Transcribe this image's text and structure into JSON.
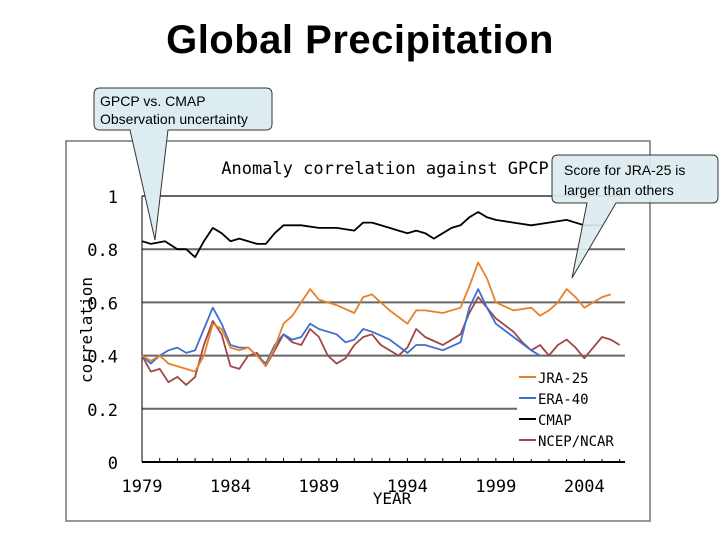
{
  "slide": {
    "title": "Global Precipitation",
    "callouts": [
      {
        "lines": [
          "GPCP vs. CMAP",
          "Observation uncertainty"
        ]
      },
      {
        "lines": [
          "Score for JRA-25 is",
          "larger than others"
        ]
      }
    ],
    "callout_fill": "#dcecf0"
  },
  "chart_data": {
    "type": "line",
    "title": "Anomaly correlation against GPCP",
    "xlabel": "YEAR",
    "ylabel": "correlation",
    "xlim": [
      1979,
      2006.3
    ],
    "ylim": [
      0,
      1
    ],
    "xticks": [
      "1979",
      "1984",
      "1989",
      "1994",
      "1999",
      "2004"
    ],
    "yticks": [
      "0",
      "0.2",
      "0.4",
      "0.6",
      "0.8",
      "1"
    ],
    "grid": true,
    "legend_position": "bottom-right",
    "series": [
      {
        "name": "JRA-25",
        "color": "#e8822a",
        "x": [
          1979,
          1979.5,
          1980,
          1980.5,
          1981,
          1981.5,
          1982,
          1982.5,
          1983,
          1983.5,
          1984,
          1984.5,
          1985,
          1985.5,
          1986,
          1986.5,
          1987,
          1987.5,
          1988,
          1988.5,
          1989,
          1990,
          1991,
          1991.5,
          1992,
          1992.5,
          1993,
          1994,
          1994.5,
          1995,
          1996,
          1997,
          1997.5,
          1998,
          1998.5,
          1999,
          2000,
          2001,
          2001.5,
          2002,
          2002.5,
          2003,
          2003.5,
          2004,
          2004.5,
          2005,
          2005.5
        ],
        "y": [
          0.4,
          0.38,
          0.4,
          0.37,
          0.36,
          0.35,
          0.34,
          0.4,
          0.52,
          0.5,
          0.43,
          0.42,
          0.43,
          0.4,
          0.36,
          0.43,
          0.52,
          0.55,
          0.6,
          0.65,
          0.61,
          0.59,
          0.56,
          0.62,
          0.63,
          0.6,
          0.57,
          0.52,
          0.57,
          0.57,
          0.56,
          0.58,
          0.66,
          0.75,
          0.69,
          0.6,
          0.57,
          0.58,
          0.55,
          0.57,
          0.6,
          0.65,
          0.62,
          0.58,
          0.6,
          0.62,
          0.63
        ]
      },
      {
        "name": "ERA-40",
        "color": "#3f6fd0",
        "x": [
          1979,
          1979.5,
          1980,
          1980.5,
          1981,
          1981.5,
          1982,
          1982.5,
          1983,
          1983.5,
          1984,
          1984.5,
          1985,
          1985.5,
          1986,
          1986.5,
          1987,
          1987.5,
          1988,
          1988.5,
          1989,
          1990,
          1990.5,
          1991,
          1991.5,
          1992,
          1993,
          1994,
          1994.5,
          1995,
          1996,
          1997,
          1997.5,
          1998,
          1998.5,
          1999,
          2000,
          2001,
          2001.5
        ],
        "y": [
          0.4,
          0.37,
          0.4,
          0.42,
          0.43,
          0.41,
          0.42,
          0.5,
          0.58,
          0.52,
          0.44,
          0.43,
          0.43,
          0.4,
          0.37,
          0.44,
          0.48,
          0.46,
          0.47,
          0.52,
          0.5,
          0.48,
          0.45,
          0.46,
          0.5,
          0.49,
          0.46,
          0.41,
          0.44,
          0.44,
          0.42,
          0.45,
          0.58,
          0.65,
          0.58,
          0.52,
          0.47,
          0.42,
          0.4
        ]
      },
      {
        "name": "CMAP",
        "color": "#000000",
        "x": [
          1979,
          1979.5,
          1980.3,
          1981,
          1981.5,
          1982,
          1982.5,
          1983,
          1983.5,
          1984,
          1984.5,
          1985,
          1985.5,
          1986,
          1986.5,
          1987,
          1988,
          1989,
          1990,
          1991,
          1991.5,
          1992,
          1993,
          1993.5,
          1994,
          1994.5,
          1995,
          1995.5,
          1996,
          1996.5,
          1997,
          1997.5,
          1998,
          1998.5,
          1999,
          2000,
          2001,
          2002,
          2003,
          2004,
          2005
        ],
        "y": [
          0.83,
          0.82,
          0.83,
          0.8,
          0.8,
          0.77,
          0.83,
          0.88,
          0.86,
          0.83,
          0.84,
          0.83,
          0.82,
          0.82,
          0.86,
          0.89,
          0.89,
          0.88,
          0.88,
          0.87,
          0.9,
          0.9,
          0.88,
          0.87,
          0.86,
          0.87,
          0.86,
          0.84,
          0.86,
          0.88,
          0.89,
          0.92,
          0.94,
          0.92,
          0.91,
          0.9,
          0.89,
          0.9,
          0.91,
          0.89,
          0.89
        ]
      },
      {
        "name": "NCEP/NCAR",
        "color": "#a04848",
        "x": [
          1979,
          1979.5,
          1980,
          1980.5,
          1981,
          1981.5,
          1982,
          1982.5,
          1983,
          1983.5,
          1984,
          1984.5,
          1985,
          1985.5,
          1986,
          1986.5,
          1987,
          1987.5,
          1988,
          1988.5,
          1989,
          1989.5,
          1990,
          1990.5,
          1991,
          1991.5,
          1992,
          1992.5,
          1993,
          1993.5,
          1994,
          1994.5,
          1995,
          1996,
          1997,
          1997.5,
          1998,
          1998.5,
          1999,
          2000,
          2000.5,
          2001,
          2001.5,
          2002,
          2002.5,
          2003,
          2003.5,
          2004,
          2004.5,
          2005,
          2005.5,
          2006
        ],
        "y": [
          0.4,
          0.34,
          0.35,
          0.3,
          0.32,
          0.29,
          0.32,
          0.44,
          0.53,
          0.48,
          0.36,
          0.35,
          0.4,
          0.41,
          0.36,
          0.42,
          0.48,
          0.45,
          0.44,
          0.5,
          0.47,
          0.4,
          0.37,
          0.39,
          0.44,
          0.47,
          0.48,
          0.44,
          0.42,
          0.4,
          0.43,
          0.5,
          0.47,
          0.44,
          0.48,
          0.56,
          0.62,
          0.58,
          0.54,
          0.49,
          0.45,
          0.42,
          0.44,
          0.4,
          0.44,
          0.46,
          0.43,
          0.39,
          0.43,
          0.47,
          0.46,
          0.44
        ]
      }
    ]
  }
}
